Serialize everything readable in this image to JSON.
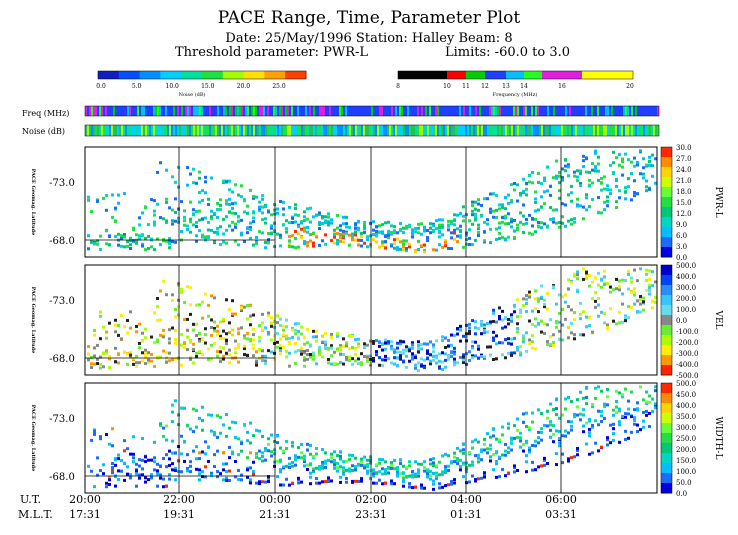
{
  "header": {
    "title": "PACE Range, Time, Parameter Plot",
    "line1": "Date: 25/May/1996  Station: Halley  Beam: 8",
    "line2_left": "Threshold parameter: PWR-L",
    "line2_right": "Limits: -60.0 to  3.0"
  },
  "noise_legend": {
    "ticks": [
      "0.0",
      "5.0",
      "10.0",
      "15.0",
      "20.0",
      "25.0"
    ],
    "label": "Noise (dB)"
  },
  "freq_legend": {
    "ticks": [
      "8",
      "10",
      "11",
      "12",
      "13",
      "14",
      "16",
      "20"
    ],
    "label": "Frequency (MHz)"
  },
  "strips": {
    "freq_label": "Freq (MHz)",
    "noise_label": "Noise (dB)"
  },
  "chart_data": [
    {
      "type": "heatmap",
      "panel": "PWR-L",
      "ylabel": "PACE Geomag. Latitude",
      "yticks": [
        "-73.0",
        "-68.0"
      ],
      "colorbar_label": "PWR-L",
      "colorbar_ticks": [
        "30.0",
        "27.0",
        "24.0",
        "21.0",
        "18.0",
        "15.0",
        "12.0",
        "9.0",
        "6.0",
        "3.0",
        "0.0"
      ],
      "colorbar_colors": [
        "#ff2a00",
        "#ff8c00",
        "#ffd400",
        "#ccff00",
        "#66ff33",
        "#22dd44",
        "#00c878",
        "#00d6c8",
        "#00bfff",
        "#1a6cff",
        "#0000e0"
      ]
    },
    {
      "type": "heatmap",
      "panel": "VEL",
      "ylabel": "PACE Geomag. Latitude",
      "yticks": [
        "-73.0",
        "-68.0"
      ],
      "colorbar_label": "VEL",
      "colorbar_ticks": [
        "500.0",
        "400.0",
        "300.0",
        "200.0",
        "100.0",
        "0.0",
        "-100.0",
        "-200.0",
        "-300.0",
        "-400.0",
        "-500.0"
      ],
      "colorbar_colors": [
        "#0000c8",
        "#0044ff",
        "#2a8cff",
        "#32c8ff",
        "#64dcf0",
        "#888888",
        "#66ee33",
        "#aaff00",
        "#ffee00",
        "#ff9900",
        "#ff2200"
      ]
    },
    {
      "type": "heatmap",
      "panel": "WIDTH-L",
      "ylabel": "PACE Geomag. Latitude",
      "yticks": [
        "-73.0",
        "-68.0"
      ],
      "colorbar_label": "WIDTH-L",
      "colorbar_ticks": [
        "500.0",
        "450.0",
        "400.0",
        "350.0",
        "300.0",
        "250.0",
        "200.0",
        "150.0",
        "100.0",
        "50.0",
        "0.0"
      ],
      "colorbar_colors": [
        "#ff2a00",
        "#ff8c00",
        "#ffd400",
        "#ccff00",
        "#66ff33",
        "#22dd44",
        "#00c878",
        "#00d6c8",
        "#00bfff",
        "#1a6cff",
        "#0000e0"
      ]
    }
  ],
  "time_axis": {
    "ut_label": "U.T.",
    "mlt_label": "M.L.T.",
    "ut": [
      "20:00",
      "22:00",
      "00:00",
      "02:00",
      "04:00",
      "06:00"
    ],
    "mlt": [
      "17:31",
      "19:31",
      "21:31",
      "23:31",
      "01:31",
      "03:31"
    ]
  }
}
